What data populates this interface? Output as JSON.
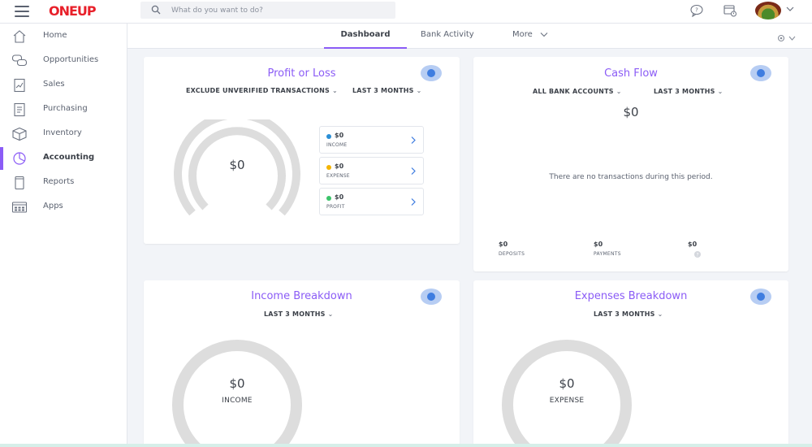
{
  "brand": {
    "logo_text": "ONEUP",
    "accent": "#8b5cf6",
    "logo_color": "#e8202a"
  },
  "search": {
    "placeholder": "What do you want to do?"
  },
  "topbar_icons": [
    "help-chat-icon",
    "tasks-icon",
    "avatar",
    "chevron-down-icon"
  ],
  "sidebar": {
    "items": [
      {
        "label": "Home",
        "icon": "home-icon"
      },
      {
        "label": "Opportunities",
        "icon": "chat-bubbles-icon"
      },
      {
        "label": "Sales",
        "icon": "sales-chart-icon"
      },
      {
        "label": "Purchasing",
        "icon": "purchase-receipt-icon"
      },
      {
        "label": "Inventory",
        "icon": "box-icon"
      },
      {
        "label": "Accounting",
        "icon": "pie-chart-icon",
        "active": true
      },
      {
        "label": "Reports",
        "icon": "reports-icon"
      },
      {
        "label": "Apps",
        "icon": "apps-grid-icon"
      }
    ]
  },
  "tabs": {
    "dashboard": "Dashboard",
    "bank_activity": "Bank Activity",
    "more": "More"
  },
  "profit_loss": {
    "title": "Profit or Loss",
    "filter_1": "EXCLUDE UNVERIFIED TRANSACTIONS",
    "filter_2": "LAST 3 MONTHS",
    "total": "$0",
    "income": {
      "value": "$0",
      "label": "INCOME",
      "color": "#2b8fd6"
    },
    "expense": {
      "value": "$0",
      "label": "EXPENSE",
      "color": "#f4b400"
    },
    "profit": {
      "value": "$0",
      "label": "PROFIT",
      "color": "#3cc46a"
    }
  },
  "cash_flow": {
    "title": "Cash Flow",
    "filter_1": "ALL BANK ACCOUNTS",
    "filter_2": "LAST 3 MONTHS",
    "total": "$0",
    "empty_message": "There are no transactions during this period.",
    "deposits": {
      "value": "$0",
      "label": "DEPOSITS"
    },
    "payments": {
      "value": "$0",
      "label": "PAYMENTS"
    },
    "net": {
      "value": "$0"
    }
  },
  "income_breakdown": {
    "title": "Income Breakdown",
    "filter": "LAST 3 MONTHS",
    "total": "$0",
    "label": "INCOME"
  },
  "expenses_breakdown": {
    "title": "Expenses Breakdown",
    "filter": "LAST 3 MONTHS",
    "total": "$0",
    "label": "EXPENSE"
  }
}
